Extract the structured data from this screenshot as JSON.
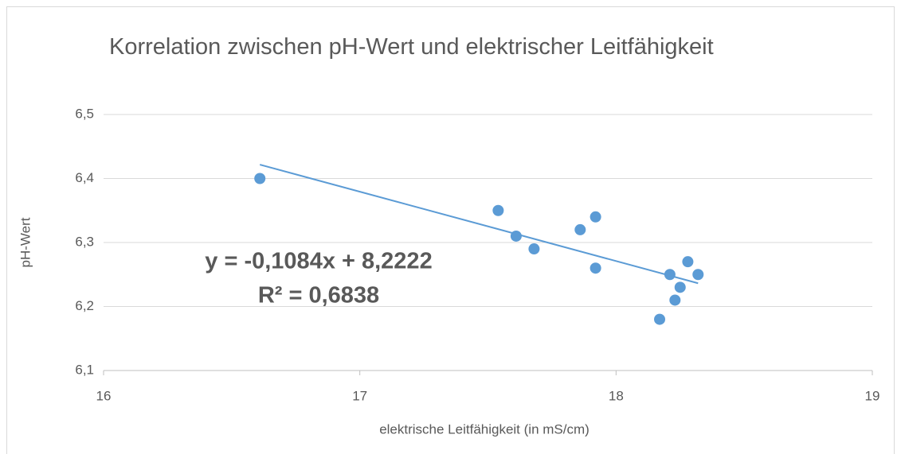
{
  "chart_data": {
    "type": "scatter",
    "title": "Korrelation zwischen pH-Wert und elektrischer Leitfähigkeit",
    "x_label": "elektrische Leitfähigkeit (in mS/cm)",
    "y_label": "pH-Wert",
    "series": [
      {
        "color": "#5b9bd5",
        "x": [
          16.61,
          17.54,
          17.61,
          17.68,
          17.86,
          17.92,
          17.92,
          18.17,
          18.21,
          18.23,
          18.25,
          18.28,
          18.32
        ],
        "values": [
          6.4,
          6.35,
          6.31,
          6.29,
          6.32,
          6.34,
          6.26,
          6.18,
          6.25,
          6.21,
          6.23,
          6.27,
          6.25
        ]
      }
    ],
    "trendline": {
      "slope": -0.1084,
      "intercept": 8.2222,
      "equation": "y = -0,1084x + 8,2222",
      "r_squared": "R² = 0,6838"
    },
    "xlim": [
      16,
      19
    ],
    "xticks": [
      16,
      17,
      18,
      19
    ],
    "ylim": [
      6.1,
      6.5
    ],
    "yticks": [
      {
        "value": 6.1,
        "label": "6,1"
      },
      {
        "value": 6.2,
        "label": "6,2"
      },
      {
        "value": 6.3,
        "label": "6,3"
      },
      {
        "value": 6.4,
        "label": "6,4"
      },
      {
        "value": 6.5,
        "label": "6,5"
      }
    ],
    "grid": true
  }
}
